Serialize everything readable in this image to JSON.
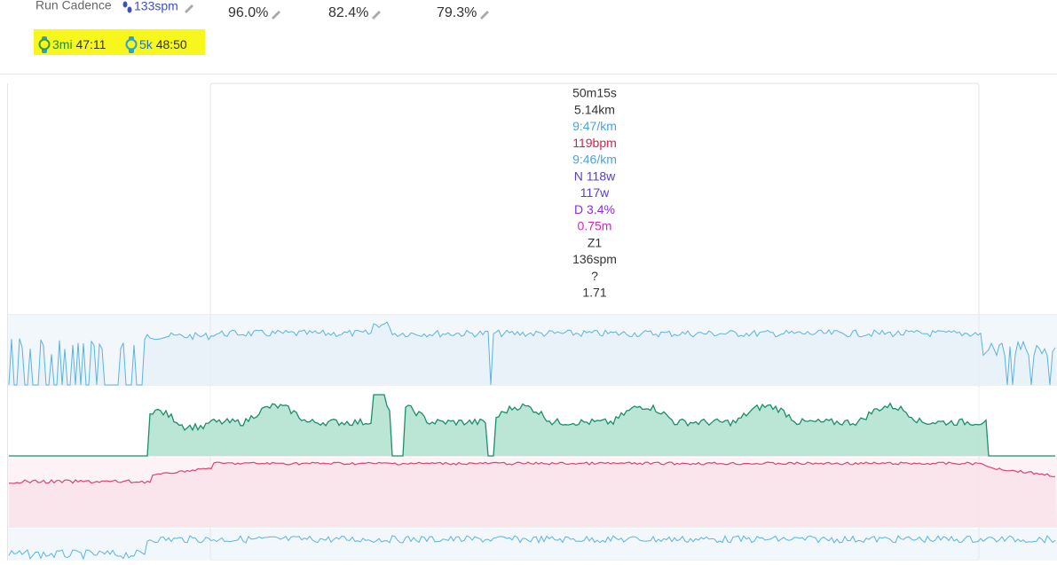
{
  "summary": {
    "cadence_label": "Run Cadence",
    "cadence_value": "133spm",
    "stats": [
      "96.0%",
      "82.4%",
      "79.3%"
    ],
    "bests": [
      {
        "distance": "3mi",
        "time": "47:11"
      },
      {
        "distance": "5k",
        "time": "48:50"
      }
    ]
  },
  "tooltip": {
    "lines": [
      {
        "text": "50m15s",
        "color": "#333333"
      },
      {
        "text": "5.14km",
        "color": "#333333"
      },
      {
        "text": "9:47/km",
        "color": "#4aa3df"
      },
      {
        "text": "119bpm",
        "color": "#d0234f"
      },
      {
        "text": "9:46/km",
        "color": "#4aa3df"
      },
      {
        "text": "N 118w",
        "color": "#5a3fc0"
      },
      {
        "text": "117w",
        "color": "#5a3fc0"
      },
      {
        "text": "D 3.4%",
        "color": "#8a2be2"
      },
      {
        "text": "0.75m",
        "color": "#e020c0"
      },
      {
        "text": "Z1",
        "color": "#333333"
      },
      {
        "text": "136spm",
        "color": "#333333"
      },
      {
        "text": "?",
        "color": "#333333"
      },
      {
        "text": "1.71",
        "color": "#333333"
      }
    ]
  }
}
